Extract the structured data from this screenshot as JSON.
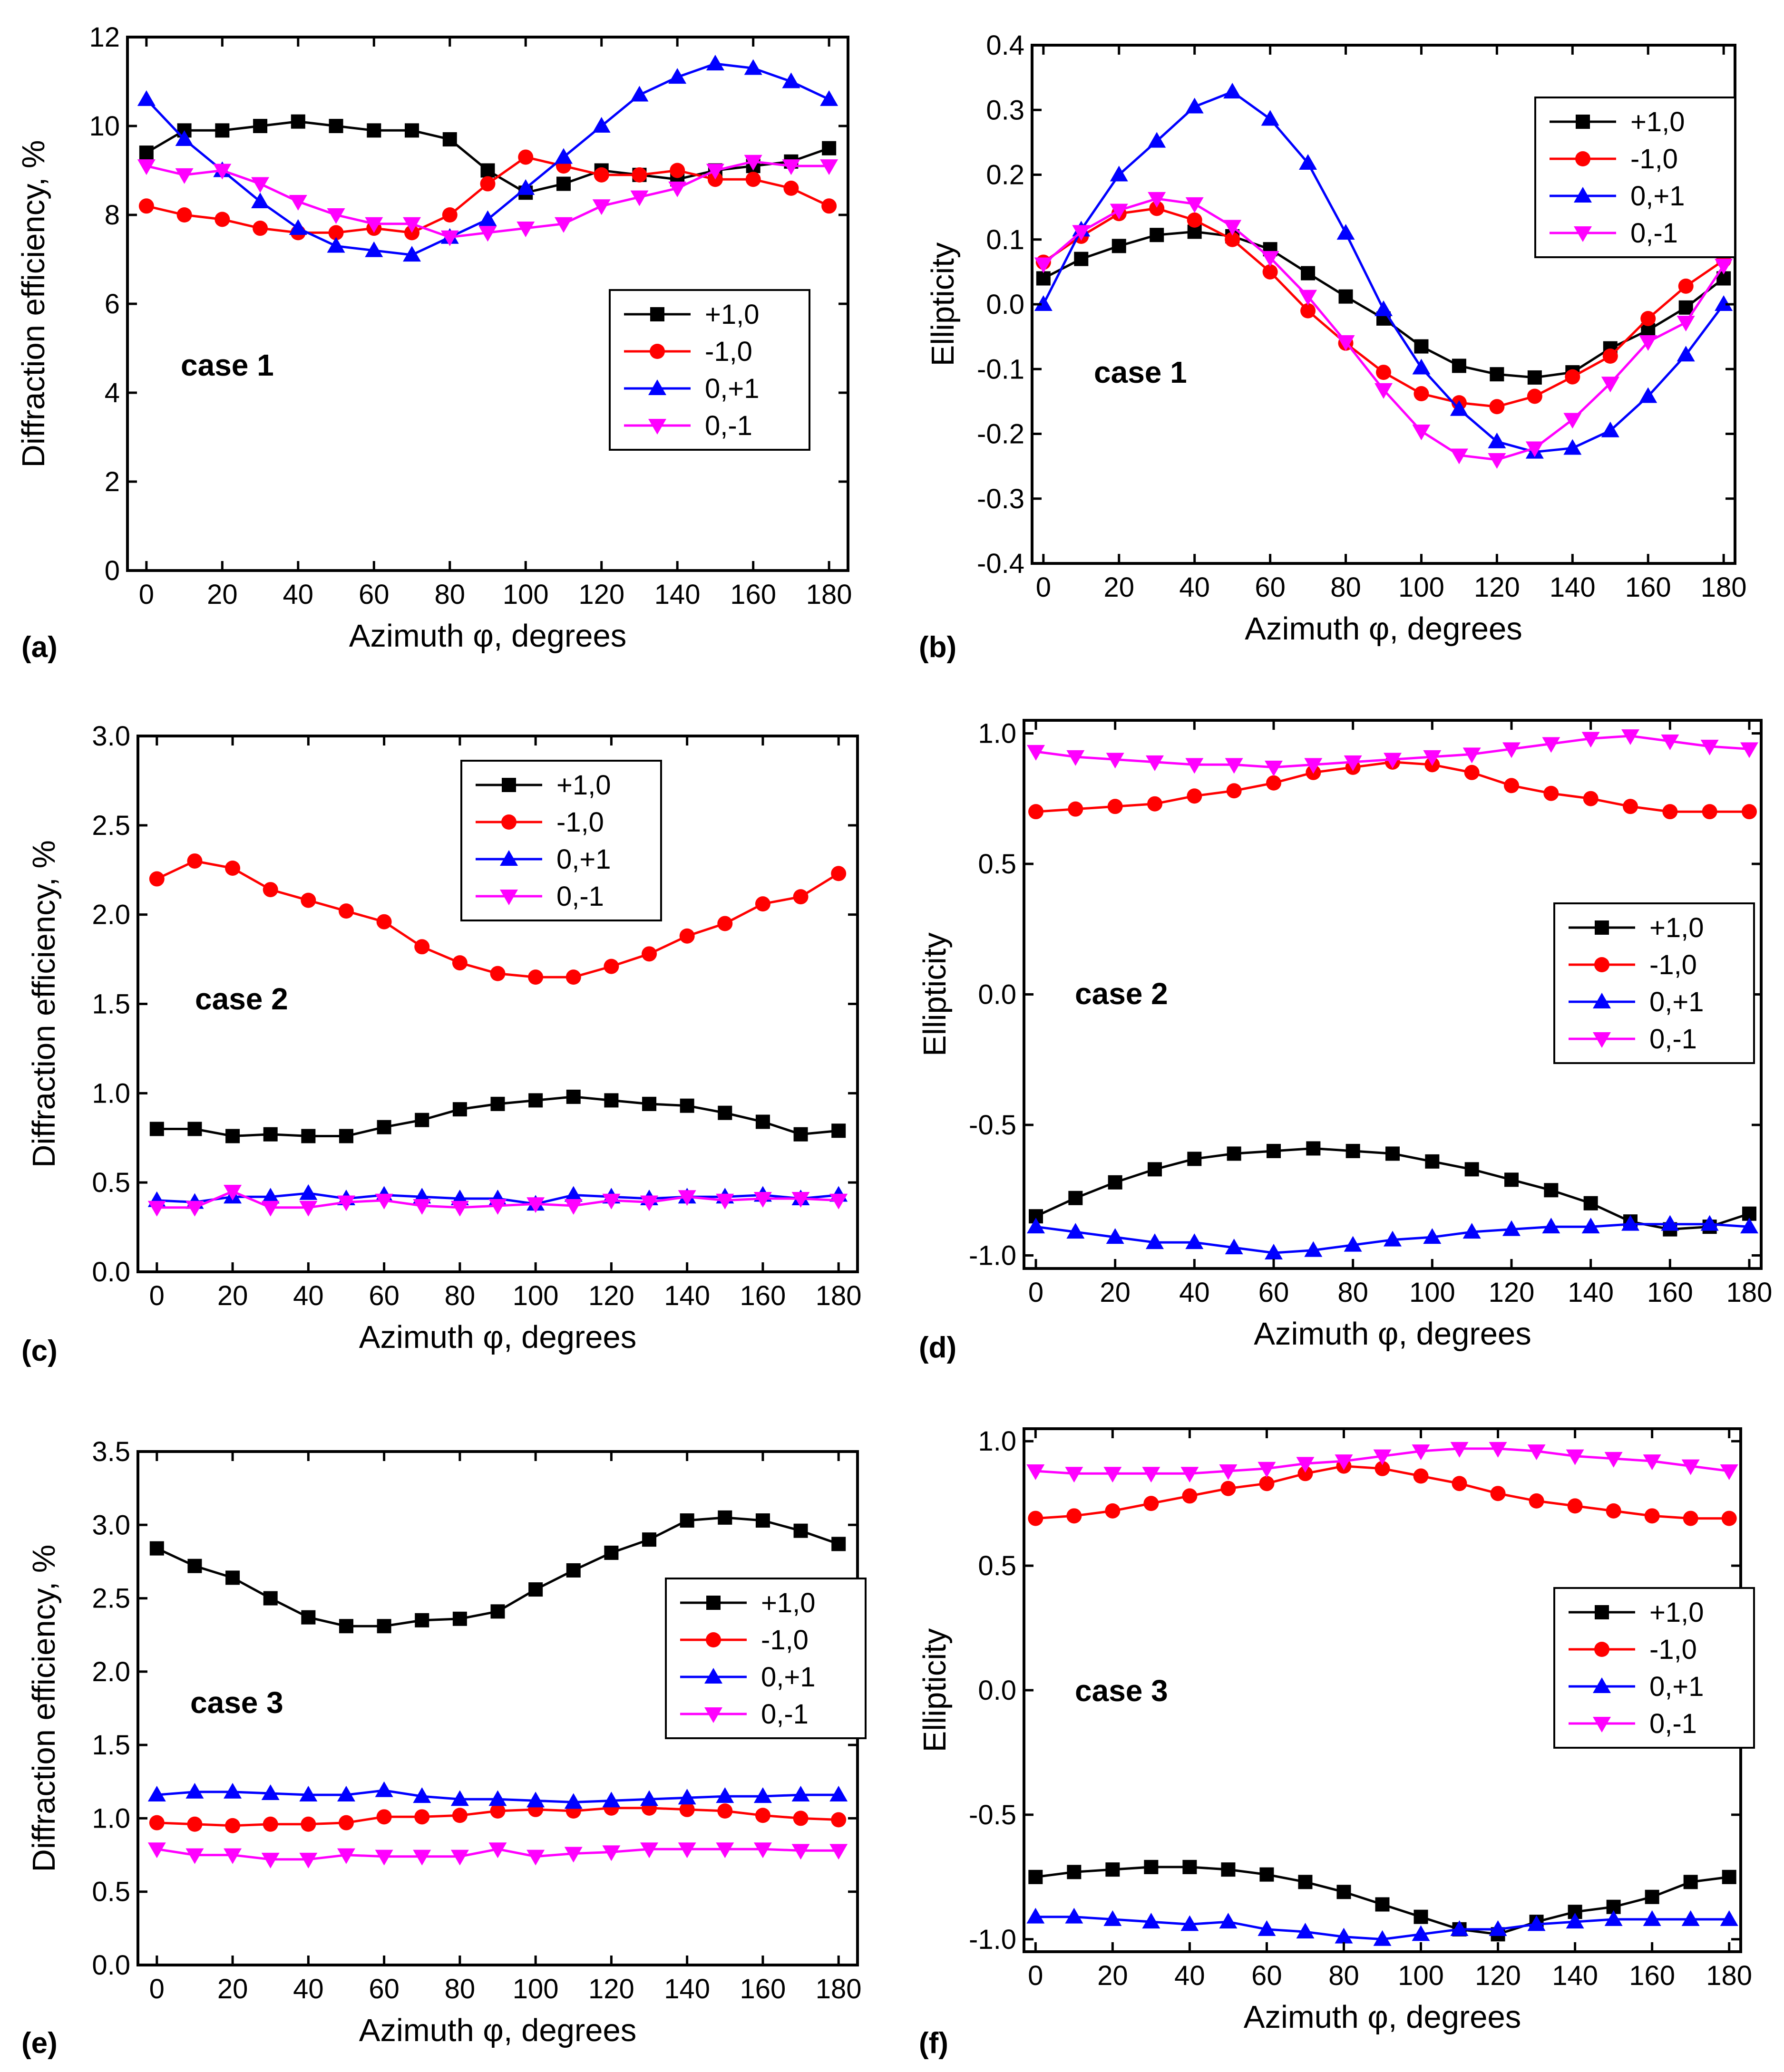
{
  "chart_data": [
    {
      "type": "line",
      "id": "a",
      "panel_label": "(a)",
      "case_label": "case 1",
      "xlabel": "Azimuth φ, degrees",
      "ylabel": "Diffraction efficiency, %",
      "xlim": [
        -5,
        185
      ],
      "ylim": [
        0,
        12
      ],
      "xticks": [
        0,
        20,
        40,
        60,
        80,
        100,
        120,
        140,
        160,
        180
      ],
      "yticks": [
        0,
        2,
        4,
        6,
        8,
        10,
        12
      ],
      "ytick_labels": [
        "0",
        "2",
        "4",
        "6",
        "8",
        "10",
        "12"
      ],
      "legend_position": "center-right",
      "x": [
        0,
        10,
        20,
        30,
        40,
        50,
        60,
        70,
        80,
        90,
        100,
        110,
        120,
        130,
        140,
        150,
        160,
        170,
        180
      ],
      "series": [
        {
          "name": "+1,0",
          "values": [
            9.4,
            9.9,
            9.9,
            10.0,
            10.1,
            10.0,
            9.9,
            9.9,
            9.7,
            9.0,
            8.5,
            8.7,
            9.0,
            8.9,
            8.8,
            9.0,
            9.1,
            9.2,
            9.5
          ]
        },
        {
          "name": "-1,0",
          "values": [
            8.2,
            8.0,
            7.9,
            7.7,
            7.6,
            7.6,
            7.7,
            7.6,
            8.0,
            8.7,
            9.3,
            9.1,
            8.9,
            8.9,
            9.0,
            8.8,
            8.8,
            8.6,
            8.2
          ]
        },
        {
          "name": "0,+1",
          "values": [
            10.6,
            9.7,
            9.0,
            8.3,
            7.7,
            7.3,
            7.2,
            7.1,
            7.5,
            7.9,
            8.6,
            9.3,
            10.0,
            10.7,
            11.1,
            11.4,
            11.3,
            11.0,
            10.6
          ]
        },
        {
          "name": "0,-1",
          "values": [
            9.1,
            8.9,
            9.0,
            8.7,
            8.3,
            8.0,
            7.8,
            7.8,
            7.5,
            7.6,
            7.7,
            7.8,
            8.2,
            8.4,
            8.6,
            9.0,
            9.2,
            9.1,
            9.1
          ]
        }
      ]
    },
    {
      "type": "line",
      "id": "b",
      "panel_label": "(b)",
      "case_label": "case 1",
      "xlabel": "Azimuth φ, degrees",
      "ylabel": "Ellipticity",
      "xlim": [
        -3,
        183
      ],
      "ylim": [
        -0.4,
        0.4
      ],
      "xticks": [
        0,
        20,
        40,
        60,
        80,
        100,
        120,
        140,
        160,
        180
      ],
      "yticks": [
        -0.4,
        -0.3,
        -0.2,
        -0.1,
        0.0,
        0.1,
        0.2,
        0.3,
        0.4
      ],
      "ytick_labels": [
        "-0.4",
        "-0.3",
        "-0.2",
        "-0.1",
        "0.0",
        "0.1",
        "0.2",
        "0.3",
        "0.4"
      ],
      "legend_position": "top-right",
      "x": [
        0,
        10,
        20,
        30,
        40,
        50,
        60,
        70,
        80,
        90,
        100,
        110,
        120,
        130,
        140,
        150,
        160,
        170,
        180
      ],
      "series": [
        {
          "name": "+1,0",
          "values": [
            0.04,
            0.07,
            0.09,
            0.107,
            0.112,
            0.105,
            0.085,
            0.048,
            0.012,
            -0.022,
            -0.065,
            -0.095,
            -0.108,
            -0.113,
            -0.105,
            -0.068,
            -0.04,
            -0.005,
            0.04
          ]
        },
        {
          "name": "-1,0",
          "values": [
            0.065,
            0.105,
            0.14,
            0.148,
            0.13,
            0.1,
            0.05,
            -0.01,
            -0.06,
            -0.105,
            -0.138,
            -0.152,
            -0.158,
            -0.142,
            -0.112,
            -0.08,
            -0.022,
            0.028,
            0.068
          ]
        },
        {
          "name": "0,+1",
          "values": [
            0.0,
            0.115,
            0.2,
            0.252,
            0.305,
            0.328,
            0.286,
            0.218,
            0.11,
            -0.008,
            -0.098,
            -0.162,
            -0.212,
            -0.228,
            -0.222,
            -0.195,
            -0.142,
            -0.078,
            0.0
          ]
        },
        {
          "name": "0,-1",
          "values": [
            0.062,
            0.112,
            0.145,
            0.163,
            0.155,
            0.12,
            0.072,
            0.012,
            -0.058,
            -0.132,
            -0.196,
            -0.233,
            -0.24,
            -0.222,
            -0.178,
            -0.122,
            -0.058,
            -0.028,
            0.06
          ]
        }
      ]
    },
    {
      "type": "line",
      "id": "c",
      "panel_label": "(c)",
      "case_label": "case 2",
      "xlabel": "Azimuth φ, degrees",
      "ylabel": "Diffraction efficiency, %",
      "xlim": [
        -5,
        185
      ],
      "ylim": [
        0,
        3.0
      ],
      "xticks": [
        0,
        20,
        40,
        60,
        80,
        100,
        120,
        140,
        160,
        180
      ],
      "yticks": [
        0,
        0.5,
        1.0,
        1.5,
        2.0,
        2.5,
        3.0
      ],
      "ytick_labels": [
        "0.0",
        "0.5",
        "1.0",
        "1.5",
        "2.0",
        "2.5",
        "3.0"
      ],
      "legend_position": "top-right",
      "x": [
        0,
        10,
        20,
        30,
        40,
        50,
        60,
        70,
        80,
        90,
        100,
        110,
        120,
        130,
        140,
        150,
        160,
        170,
        180
      ],
      "series": [
        {
          "name": "+1,0",
          "values": [
            0.8,
            0.8,
            0.76,
            0.77,
            0.76,
            0.76,
            0.81,
            0.85,
            0.91,
            0.94,
            0.96,
            0.98,
            0.96,
            0.94,
            0.93,
            0.89,
            0.84,
            0.77,
            0.79
          ]
        },
        {
          "name": "-1,0",
          "values": [
            2.2,
            2.3,
            2.26,
            2.14,
            2.08,
            2.02,
            1.96,
            1.82,
            1.73,
            1.67,
            1.65,
            1.65,
            1.71,
            1.78,
            1.88,
            1.95,
            2.06,
            2.1,
            2.23
          ]
        },
        {
          "name": "0,+1",
          "values": [
            0.4,
            0.39,
            0.42,
            0.42,
            0.44,
            0.41,
            0.43,
            0.42,
            0.41,
            0.41,
            0.38,
            0.43,
            0.42,
            0.41,
            0.42,
            0.42,
            0.43,
            0.41,
            0.43
          ]
        },
        {
          "name": "0,-1",
          "values": [
            0.36,
            0.36,
            0.45,
            0.36,
            0.36,
            0.39,
            0.4,
            0.37,
            0.36,
            0.37,
            0.38,
            0.37,
            0.4,
            0.39,
            0.42,
            0.4,
            0.41,
            0.41,
            0.4
          ]
        }
      ]
    },
    {
      "type": "line",
      "id": "d",
      "panel_label": "(d)",
      "case_label": "case 2",
      "xlabel": "Azimuth φ, degrees",
      "ylabel": "Ellipticity",
      "xlim": [
        -3,
        183
      ],
      "ylim": [
        -1.05,
        1.05
      ],
      "xticks": [
        0,
        20,
        40,
        60,
        80,
        100,
        120,
        140,
        160,
        180
      ],
      "yticks": [
        -1.0,
        -0.5,
        0.0,
        0.5,
        1.0
      ],
      "ytick_labels": [
        "-1.0",
        "-0.5",
        "0.0",
        "0.5",
        "1.0"
      ],
      "legend_position": "center-right",
      "x": [
        0,
        10,
        20,
        30,
        40,
        50,
        60,
        70,
        80,
        90,
        100,
        110,
        120,
        130,
        140,
        150,
        160,
        170,
        180
      ],
      "series": [
        {
          "name": "+1,0",
          "values": [
            -0.85,
            -0.78,
            -0.72,
            -0.67,
            -0.63,
            -0.61,
            -0.6,
            -0.59,
            -0.6,
            -0.61,
            -0.64,
            -0.67,
            -0.71,
            -0.75,
            -0.8,
            -0.87,
            -0.9,
            -0.89,
            -0.84
          ]
        },
        {
          "name": "-1,0",
          "values": [
            0.7,
            0.71,
            0.72,
            0.73,
            0.76,
            0.78,
            0.81,
            0.85,
            0.87,
            0.89,
            0.88,
            0.85,
            0.8,
            0.77,
            0.75,
            0.72,
            0.7,
            0.7,
            0.7
          ]
        },
        {
          "name": "0,+1",
          "values": [
            -0.89,
            -0.91,
            -0.93,
            -0.95,
            -0.95,
            -0.97,
            -0.99,
            -0.98,
            -0.96,
            -0.94,
            -0.93,
            -0.91,
            -0.9,
            -0.89,
            -0.89,
            -0.88,
            -0.88,
            -0.88,
            -0.89
          ]
        },
        {
          "name": "0,-1",
          "values": [
            0.93,
            0.91,
            0.9,
            0.89,
            0.88,
            0.88,
            0.87,
            0.88,
            0.89,
            0.9,
            0.91,
            0.92,
            0.94,
            0.96,
            0.98,
            0.99,
            0.97,
            0.95,
            0.94
          ]
        }
      ]
    },
    {
      "type": "line",
      "id": "e",
      "panel_label": "(e)",
      "case_label": "case 3",
      "xlabel": "Azimuth φ, degrees",
      "ylabel": "Diffraction efficiency, %",
      "xlim": [
        -5,
        185
      ],
      "ylim": [
        0,
        3.5
      ],
      "xticks": [
        0,
        20,
        40,
        60,
        80,
        100,
        120,
        140,
        160,
        180
      ],
      "yticks": [
        0,
        0.5,
        1.0,
        1.5,
        2.0,
        2.5,
        3.0,
        3.5
      ],
      "ytick_labels": [
        "0.0",
        "0.5",
        "1.0",
        "1.5",
        "2.0",
        "2.5",
        "3.0",
        "3.5"
      ],
      "legend_position": "center-right",
      "x": [
        0,
        10,
        20,
        30,
        40,
        50,
        60,
        70,
        80,
        90,
        100,
        110,
        120,
        130,
        140,
        150,
        160,
        170,
        180
      ],
      "series": [
        {
          "name": "+1,0",
          "values": [
            2.84,
            2.72,
            2.64,
            2.5,
            2.37,
            2.31,
            2.31,
            2.35,
            2.36,
            2.41,
            2.56,
            2.69,
            2.81,
            2.9,
            3.03,
            3.05,
            3.03,
            2.96,
            2.87
          ]
        },
        {
          "name": "-1,0",
          "values": [
            0.97,
            0.96,
            0.95,
            0.96,
            0.96,
            0.97,
            1.01,
            1.01,
            1.02,
            1.05,
            1.06,
            1.05,
            1.07,
            1.07,
            1.06,
            1.05,
            1.02,
            1.0,
            0.99
          ]
        },
        {
          "name": "0,+1",
          "values": [
            1.16,
            1.18,
            1.18,
            1.17,
            1.16,
            1.16,
            1.19,
            1.15,
            1.13,
            1.13,
            1.12,
            1.11,
            1.12,
            1.13,
            1.14,
            1.15,
            1.15,
            1.16,
            1.16
          ]
        },
        {
          "name": "0,-1",
          "values": [
            0.79,
            0.75,
            0.75,
            0.72,
            0.72,
            0.75,
            0.74,
            0.74,
            0.74,
            0.79,
            0.74,
            0.76,
            0.77,
            0.79,
            0.79,
            0.79,
            0.79,
            0.78,
            0.78
          ]
        }
      ]
    },
    {
      "type": "line",
      "id": "f",
      "panel_label": "(f)",
      "case_label": "case 3",
      "xlabel": "Azimuth φ, degrees",
      "ylabel": "Ellipticity",
      "xlim": [
        -3,
        183
      ],
      "ylim": [
        -1.05,
        1.05
      ],
      "xticks": [
        0,
        20,
        40,
        60,
        80,
        100,
        120,
        140,
        160,
        180
      ],
      "yticks": [
        -1.0,
        -0.5,
        0.0,
        0.5,
        1.0
      ],
      "ytick_labels": [
        "-1.0",
        "-0.5",
        "0.0",
        "0.5",
        "1.0"
      ],
      "legend_position": "center-right",
      "x": [
        0,
        10,
        20,
        30,
        40,
        50,
        60,
        70,
        80,
        90,
        100,
        110,
        120,
        130,
        140,
        150,
        160,
        170,
        180
      ],
      "series": [
        {
          "name": "+1,0",
          "values": [
            -0.75,
            -0.73,
            -0.72,
            -0.71,
            -0.71,
            -0.72,
            -0.74,
            -0.77,
            -0.81,
            -0.86,
            -0.91,
            -0.96,
            -0.98,
            -0.93,
            -0.89,
            -0.87,
            -0.83,
            -0.77,
            -0.75
          ]
        },
        {
          "name": "-1,0",
          "values": [
            0.69,
            0.7,
            0.72,
            0.75,
            0.78,
            0.81,
            0.83,
            0.87,
            0.9,
            0.89,
            0.86,
            0.83,
            0.79,
            0.76,
            0.74,
            0.72,
            0.7,
            0.69,
            0.69
          ]
        },
        {
          "name": "0,+1",
          "values": [
            -0.91,
            -0.91,
            -0.92,
            -0.93,
            -0.94,
            -0.93,
            -0.96,
            -0.97,
            -0.99,
            -1.0,
            -0.98,
            -0.96,
            -0.96,
            -0.94,
            -0.93,
            -0.92,
            -0.92,
            -0.92,
            -0.92
          ]
        },
        {
          "name": "0,-1",
          "values": [
            0.88,
            0.87,
            0.87,
            0.87,
            0.87,
            0.88,
            0.89,
            0.91,
            0.92,
            0.94,
            0.96,
            0.97,
            0.97,
            0.96,
            0.94,
            0.93,
            0.92,
            0.9,
            0.88
          ]
        }
      ]
    }
  ],
  "series_style": [
    {
      "name": "+1,0",
      "color": "#000000",
      "marker": "square"
    },
    {
      "name": "-1,0",
      "color": "#ff0000",
      "marker": "circle"
    },
    {
      "name": "0,+1",
      "color": "#0000ff",
      "marker": "triangle-up"
    },
    {
      "name": "0,-1",
      "color": "#ff00ff",
      "marker": "triangle-down"
    }
  ]
}
